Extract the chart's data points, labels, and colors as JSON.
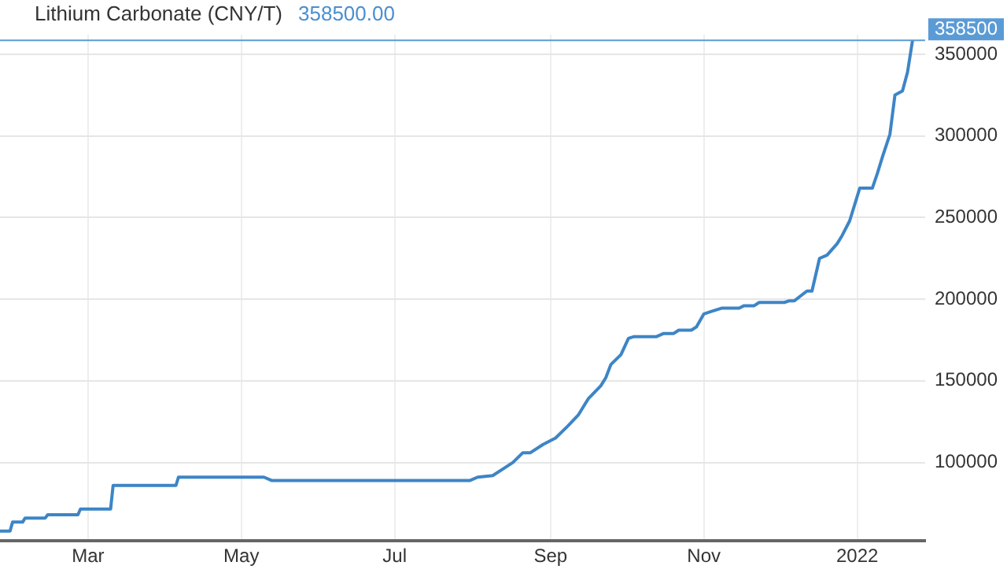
{
  "chart_data": {
    "type": "step",
    "title": "Lithium Carbonate (CNY/T)",
    "subtitle": "358500.00",
    "x": [
      "2021-01-25",
      "2021-01-29",
      "2021-01-30",
      "2021-02-03",
      "2021-02-04",
      "2021-02-12",
      "2021-02-13",
      "2021-02-25",
      "2021-02-26",
      "2021-03-10",
      "2021-03-11",
      "2021-04-05",
      "2021-04-06",
      "2021-05-10",
      "2021-05-13",
      "2021-07-31",
      "2021-08-03",
      "2021-08-09",
      "2021-08-14",
      "2021-08-17",
      "2021-08-21",
      "2021-08-24",
      "2021-08-29",
      "2021-09-03",
      "2021-09-08",
      "2021-09-12",
      "2021-09-16",
      "2021-09-21",
      "2021-09-23",
      "2021-09-25",
      "2021-09-29",
      "2021-10-02",
      "2021-10-04",
      "2021-10-13",
      "2021-10-16",
      "2021-10-20",
      "2021-10-22",
      "2021-10-27",
      "2021-10-29",
      "2021-11-01",
      "2021-11-04",
      "2021-11-08",
      "2021-11-15",
      "2021-11-17",
      "2021-11-21",
      "2021-11-23",
      "2021-12-03",
      "2021-12-05",
      "2021-12-07",
      "2021-12-12",
      "2021-12-14",
      "2021-12-17",
      "2021-12-20",
      "2021-12-24",
      "2021-12-26",
      "2021-12-29",
      "2022-01-02",
      "2022-01-07",
      "2022-01-09",
      "2022-01-11",
      "2022-01-14",
      "2022-01-16",
      "2022-01-19",
      "2022-01-21",
      "2022-01-23"
    ],
    "series": [
      {
        "color": "#3d85c6",
        "values": [
          58000,
          58000,
          63500,
          63500,
          66000,
          66000,
          68000,
          68000,
          71500,
          71500,
          86000,
          86000,
          91000,
          91000,
          89000,
          89000,
          91000,
          92000,
          97000,
          100000,
          106000,
          106000,
          111000,
          115000,
          122500,
          129000,
          139000,
          147000,
          152000,
          160000,
          166000,
          176000,
          177000,
          177000,
          179000,
          179000,
          181000,
          181000,
          183000,
          191000,
          192500,
          194500,
          194500,
          196000,
          196000,
          198000,
          198000,
          199000,
          199000,
          205000,
          205000,
          225000,
          227000,
          234000,
          239000,
          248000,
          268000,
          268000,
          277000,
          287000,
          301000,
          325000,
          327500,
          339000,
          358500
        ]
      }
    ],
    "xlim": [
      "2021-01-25",
      "2022-01-28"
    ],
    "xticks": [
      {
        "value": "2021-03-01",
        "label": "Mar"
      },
      {
        "value": "2021-05-01",
        "label": "May"
      },
      {
        "value": "2021-07-01",
        "label": "Jul"
      },
      {
        "value": "2021-09-01",
        "label": "Sep"
      },
      {
        "value": "2021-11-01",
        "label": "Nov"
      },
      {
        "value": "2022-01-01",
        "label": "2022"
      }
    ],
    "ylim": [
      52000,
      362000
    ],
    "yticks": [
      100000,
      150000,
      200000,
      250000,
      300000,
      350000
    ],
    "ref_lines": [
      {
        "axis": "y",
        "value": 358500,
        "label": "358500",
        "color": "#5b9bd5"
      }
    ],
    "grid": true,
    "legend": false,
    "line_style": "solid",
    "marker": "none"
  }
}
